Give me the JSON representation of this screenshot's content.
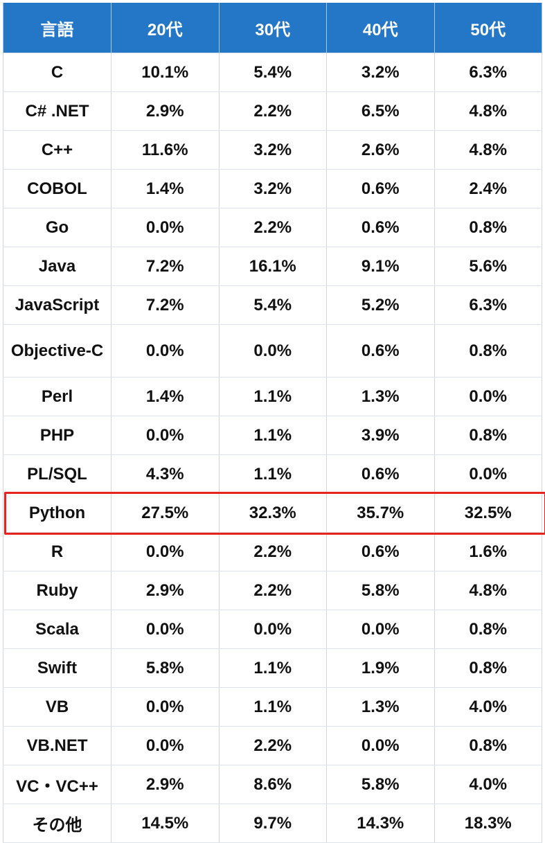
{
  "chart_data": {
    "type": "table",
    "columns": [
      "言語",
      "20代",
      "30代",
      "40代",
      "50代"
    ],
    "rows": [
      {
        "language": "C",
        "values": [
          "10.1%",
          "5.4%",
          "3.2%",
          "6.3%"
        ]
      },
      {
        "language": "C# .NET",
        "values": [
          "2.9%",
          "2.2%",
          "6.5%",
          "4.8%"
        ]
      },
      {
        "language": "C++",
        "values": [
          "11.6%",
          "3.2%",
          "2.6%",
          "4.8%"
        ]
      },
      {
        "language": "COBOL",
        "values": [
          "1.4%",
          "3.2%",
          "0.6%",
          "2.4%"
        ]
      },
      {
        "language": "Go",
        "values": [
          "0.0%",
          "2.2%",
          "0.6%",
          "0.8%"
        ]
      },
      {
        "language": "Java",
        "values": [
          "7.2%",
          "16.1%",
          "9.1%",
          "5.6%"
        ]
      },
      {
        "language": "JavaScript",
        "values": [
          "7.2%",
          "5.4%",
          "5.2%",
          "6.3%"
        ]
      },
      {
        "language": "Objective-C",
        "values": [
          "0.0%",
          "0.0%",
          "0.6%",
          "0.8%"
        ]
      },
      {
        "language": "Perl",
        "values": [
          "1.4%",
          "1.1%",
          "1.3%",
          "0.0%"
        ]
      },
      {
        "language": "PHP",
        "values": [
          "0.0%",
          "1.1%",
          "3.9%",
          "0.8%"
        ]
      },
      {
        "language": "PL/SQL",
        "values": [
          "4.3%",
          "1.1%",
          "0.6%",
          "0.0%"
        ]
      },
      {
        "language": "Python",
        "values": [
          "27.5%",
          "32.3%",
          "35.7%",
          "32.5%"
        ]
      },
      {
        "language": "R",
        "values": [
          "0.0%",
          "2.2%",
          "0.6%",
          "1.6%"
        ]
      },
      {
        "language": "Ruby",
        "values": [
          "2.9%",
          "2.2%",
          "5.8%",
          "4.8%"
        ]
      },
      {
        "language": "Scala",
        "values": [
          "0.0%",
          "0.0%",
          "0.0%",
          "0.8%"
        ]
      },
      {
        "language": "Swift",
        "values": [
          "5.8%",
          "1.1%",
          "1.9%",
          "0.8%"
        ]
      },
      {
        "language": "VB",
        "values": [
          "0.0%",
          "1.1%",
          "1.3%",
          "4.0%"
        ]
      },
      {
        "language": "VB.NET",
        "values": [
          "0.0%",
          "2.2%",
          "0.0%",
          "0.8%"
        ]
      },
      {
        "language": "VC・VC++",
        "values": [
          "2.9%",
          "8.6%",
          "5.8%",
          "4.0%"
        ]
      },
      {
        "language": "その他",
        "values": [
          "14.5%",
          "9.7%",
          "14.3%",
          "18.3%"
        ]
      }
    ],
    "highlighted_row": "Python",
    "header_color": "#2476c7",
    "highlight_color": "#e8231d"
  }
}
